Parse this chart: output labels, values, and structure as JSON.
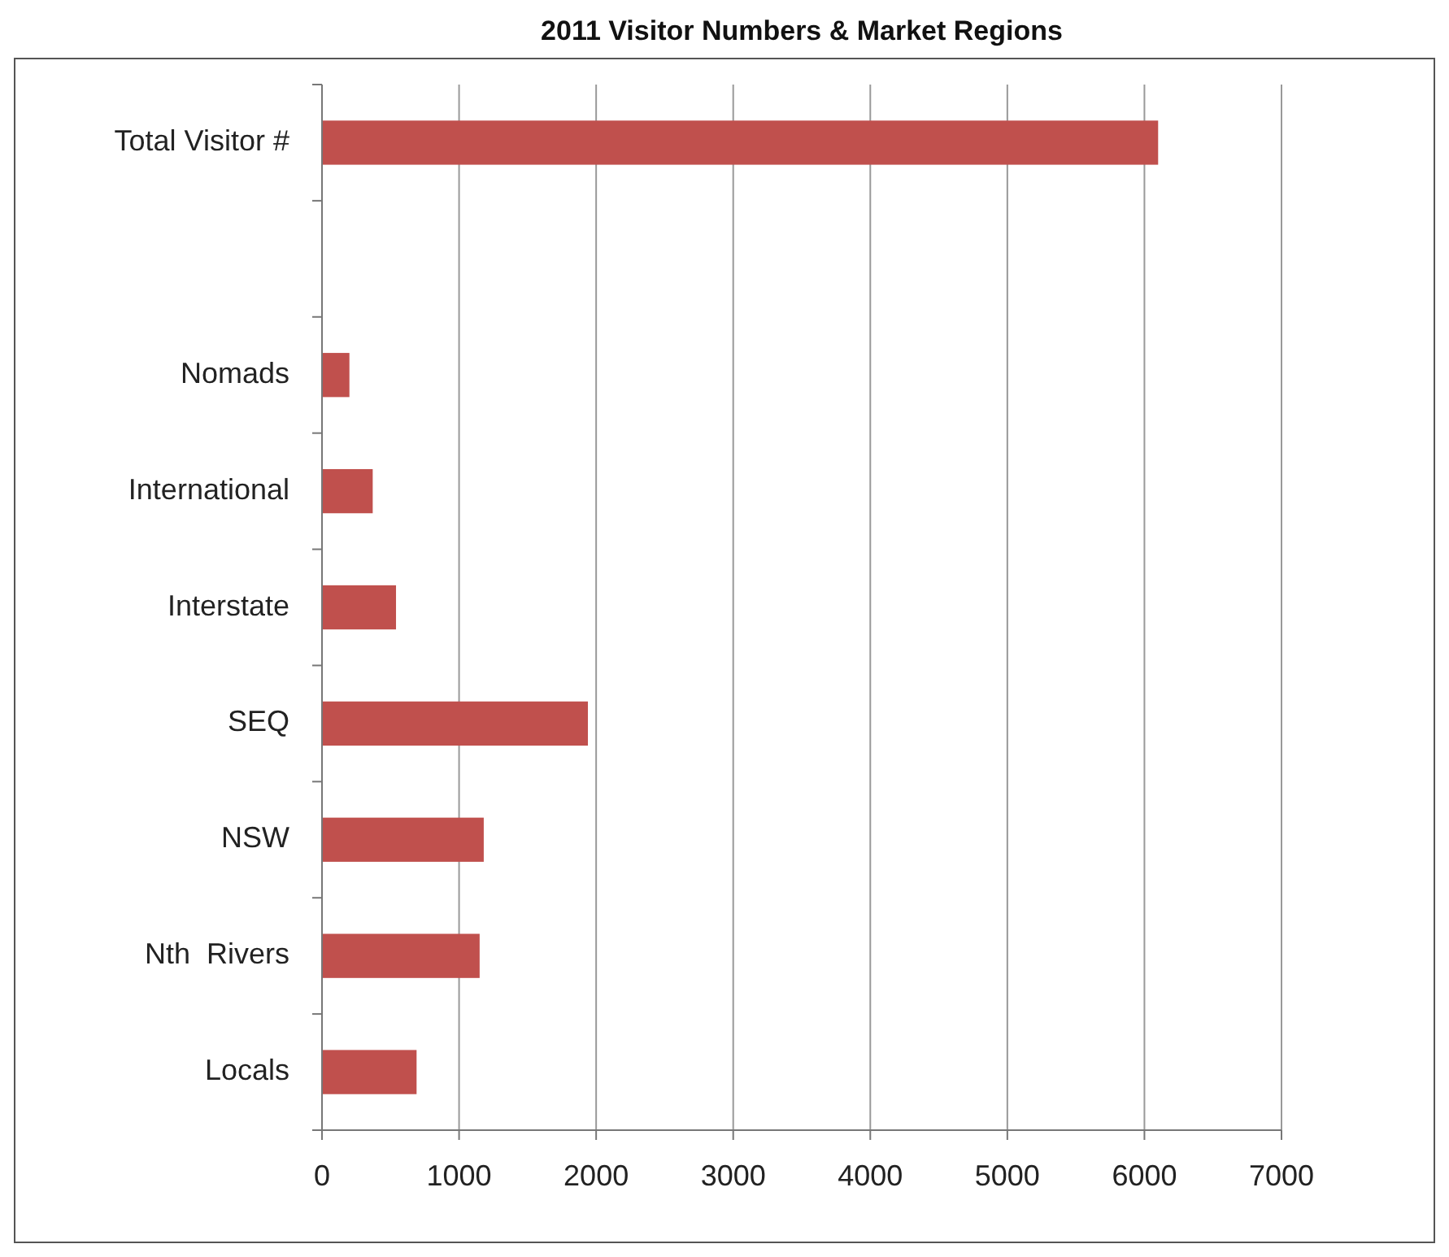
{
  "chart_data": {
    "type": "bar",
    "orientation": "horizontal",
    "title": "2011 Visitor Numbers & Market Regions",
    "categories": [
      "Total Visitor #",
      null,
      "Nomads",
      "International",
      "Interstate",
      "SEQ",
      "NSW",
      "Nth  Rivers",
      "Locals"
    ],
    "values": [
      6100,
      null,
      200,
      370,
      540,
      1940,
      1180,
      1150,
      690
    ],
    "color": "#c0504d",
    "xlim": [
      0,
      7000
    ],
    "xticks": [
      0,
      1000,
      2000,
      3000,
      4000,
      5000,
      6000,
      7000
    ],
    "grid": "x"
  }
}
